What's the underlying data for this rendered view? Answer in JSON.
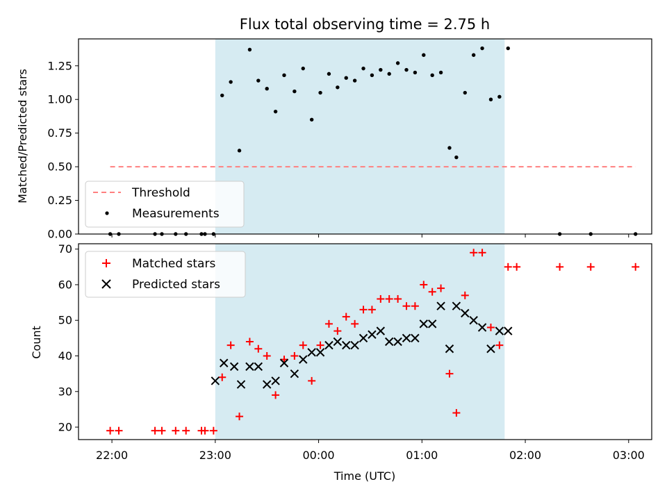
{
  "chart_data": [
    {
      "type": "scatter",
      "title": "Flux total observing time = 2.75 h",
      "ylabel": "Matched/Predicted stars",
      "ylim": [
        0,
        1.45
      ],
      "yticks": [
        "0.00",
        "0.25",
        "0.50",
        "0.75",
        "1.00",
        "1.25"
      ],
      "shaded_interval": [
        "23:00",
        "01:48"
      ],
      "legend": {
        "placement": "lower-left",
        "entries": [
          "Threshold",
          "Measurements"
        ]
      },
      "threshold": {
        "name": "Threshold",
        "value": 0.5,
        "x_start": "21:59",
        "x_end": "03:04",
        "color": "#ff7f7f"
      },
      "series": [
        {
          "name": "Measurements",
          "color": "#000000",
          "x": [
            "21:59",
            "22:04",
            "22:25",
            "22:29",
            "22:37",
            "22:43",
            "22:52",
            "22:54",
            "22:59",
            "23:04",
            "23:09",
            "23:14",
            "23:20",
            "23:25",
            "23:30",
            "23:35",
            "23:40",
            "23:46",
            "23:51",
            "23:56",
            "00:01",
            "00:06",
            "00:11",
            "00:16",
            "00:21",
            "00:26",
            "00:31",
            "00:36",
            "00:41",
            "00:46",
            "00:51",
            "00:56",
            "01:01",
            "01:06",
            "01:11",
            "01:16",
            "01:20",
            "01:25",
            "01:30",
            "01:35",
            "01:40",
            "01:45",
            "01:50",
            "02:20",
            "02:38",
            "03:04"
          ],
          "y": [
            0,
            0,
            0,
            0,
            0,
            0,
            0,
            0,
            0,
            1.03,
            1.13,
            0.62,
            1.37,
            1.14,
            1.08,
            0.91,
            1.18,
            1.06,
            1.23,
            0.85,
            1.05,
            1.19,
            1.09,
            1.16,
            1.14,
            1.23,
            1.18,
            1.22,
            1.19,
            1.27,
            1.22,
            1.2,
            1.33,
            1.18,
            1.2,
            0.64,
            0.57,
            1.05,
            1.33,
            1.38,
            1.0,
            1.02,
            1.38,
            0,
            0,
            0
          ]
        }
      ]
    },
    {
      "type": "scatter",
      "xlabel": "Time (UTC)",
      "ylabel": "Count",
      "ylim": [
        16.5,
        71.5
      ],
      "yticks": [
        "20",
        "30",
        "40",
        "50",
        "60",
        "70"
      ],
      "xticks": [
        "22:00",
        "23:00",
        "00:00",
        "01:00",
        "02:00",
        "03:00"
      ],
      "shaded_interval": [
        "23:00",
        "01:48"
      ],
      "legend": {
        "placement": "upper-left",
        "entries": [
          "Matched stars",
          "Predicted stars"
        ]
      },
      "series": [
        {
          "name": "Matched stars",
          "marker": "+",
          "color": "#ff0000",
          "x": [
            "21:59",
            "22:04",
            "22:25",
            "22:29",
            "22:37",
            "22:43",
            "22:52",
            "22:54",
            "22:59",
            "23:04",
            "23:09",
            "23:14",
            "23:20",
            "23:25",
            "23:30",
            "23:35",
            "23:40",
            "23:46",
            "23:51",
            "23:56",
            "00:01",
            "00:06",
            "00:11",
            "00:16",
            "00:21",
            "00:26",
            "00:31",
            "00:36",
            "00:41",
            "00:46",
            "00:51",
            "00:56",
            "01:01",
            "01:06",
            "01:11",
            "01:16",
            "01:20",
            "01:25",
            "01:30",
            "01:35",
            "01:40",
            "01:45",
            "01:50",
            "01:55",
            "02:20",
            "02:38",
            "03:04"
          ],
          "y": [
            19,
            19,
            19,
            19,
            19,
            19,
            19,
            19,
            19,
            34,
            43,
            23,
            44,
            42,
            40,
            29,
            39,
            40,
            43,
            33,
            43,
            49,
            47,
            51,
            49,
            53,
            53,
            56,
            56,
            56,
            54,
            54,
            60,
            58,
            59,
            35,
            24,
            57,
            69,
            69,
            48,
            43,
            65,
            65,
            65,
            65,
            65
          ]
        },
        {
          "name": "Predicted stars",
          "marker": "x",
          "color": "#000000",
          "x": [
            "23:00",
            "23:05",
            "23:11",
            "23:15",
            "23:20",
            "23:25",
            "23:30",
            "23:35",
            "23:40",
            "23:46",
            "23:51",
            "23:56",
            "00:01",
            "00:06",
            "00:11",
            "00:16",
            "00:21",
            "00:26",
            "00:31",
            "00:36",
            "00:41",
            "00:46",
            "00:51",
            "00:56",
            "01:01",
            "01:06",
            "01:11",
            "01:16",
            "01:20",
            "01:25",
            "01:30",
            "01:35",
            "01:40",
            "01:45",
            "01:50"
          ],
          "y": [
            33,
            38,
            37,
            32,
            37,
            37,
            32,
            33,
            38,
            35,
            39,
            41,
            41,
            43,
            44,
            43,
            43,
            45,
            46,
            47,
            44,
            44,
            45,
            45,
            49,
            49,
            54,
            42,
            54,
            52,
            50,
            48,
            42,
            47,
            47
          ]
        }
      ]
    }
  ]
}
